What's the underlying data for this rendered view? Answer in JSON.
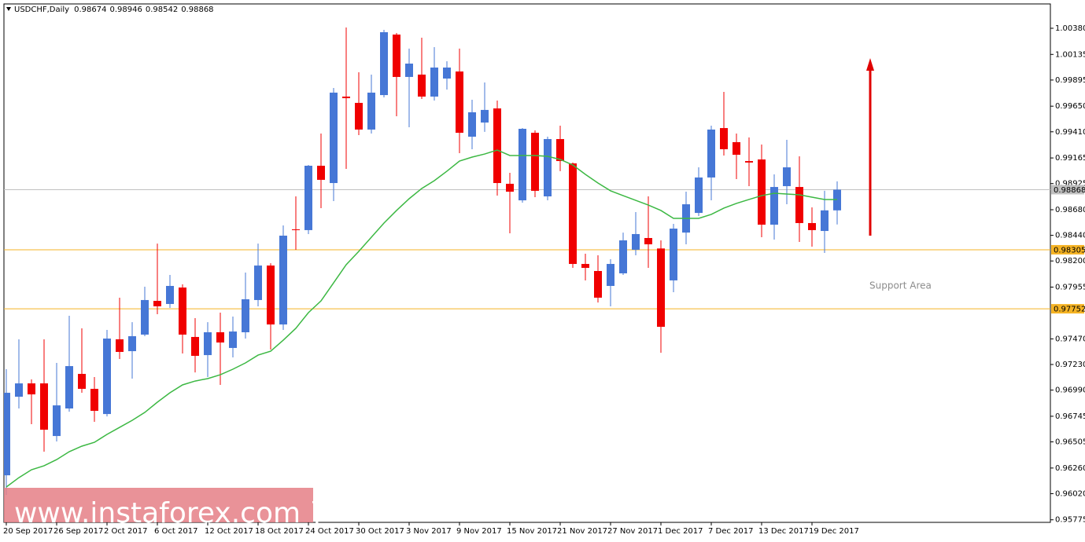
{
  "chart_data": {
    "type": "candlestick",
    "title": "USDCHF,Daily",
    "categories": [
      "20 Sep 2017",
      null,
      null,
      null,
      "26 Sep 2017",
      null,
      null,
      null,
      "2 Oct 2017",
      null,
      null,
      null,
      "6 Oct 2017",
      null,
      null,
      null,
      "12 Oct 2017",
      null,
      null,
      null,
      "18 Oct 2017",
      null,
      null,
      null,
      "24 Oct 2017",
      null,
      null,
      null,
      "30 Oct 2017",
      null,
      null,
      null,
      "3 Nov 2017",
      null,
      null,
      null,
      "9 Nov 2017",
      null,
      null,
      null,
      "15 Nov 2017",
      null,
      null,
      null,
      "21 Nov 2017",
      null,
      null,
      null,
      "27 Nov 2017",
      null,
      null,
      null,
      "1 Dec 2017",
      null,
      null,
      null,
      "7 Dec 2017",
      null,
      null,
      null,
      "13 Dec 2017",
      null,
      null,
      null,
      "19 Dec 2017",
      null,
      null
    ],
    "open": [
      0.96192,
      0.96928,
      0.97053,
      0.97053,
      0.9656,
      0.96818,
      0.97142,
      0.97002,
      0.96766,
      0.97466,
      0.97355,
      0.9751,
      0.97826,
      0.97797,
      0.97951,
      0.97488,
      0.97318,
      0.97532,
      0.97385,
      0.97532,
      0.97834,
      0.98157,
      0.97605,
      0.98496,
      0.98489,
      0.99092,
      0.9893,
      0.9974,
      0.99681,
      0.99431,
      0.99754,
      1.00321,
      0.99924,
      0.99946,
      0.9974,
      0.99909,
      0.99975,
      0.99364,
      0.99497,
      0.99629,
      0.98923,
      0.98768,
      0.99401,
      0.98805,
      0.99342,
      0.99114,
      0.98172,
      0.98106,
      0.97966,
      0.98084,
      0.98305,
      0.98415,
      0.98317,
      0.98018,
      0.98466,
      0.9865,
      0.98982,
      0.99445,
      0.99313,
      0.99136,
      0.99151,
      0.9854,
      0.98901,
      0.98893,
      0.98555,
      0.98481,
      0.98674
    ],
    "high": [
      0.97186,
      0.97466,
      0.9709,
      0.97466,
      0.97245,
      0.97686,
      0.97569,
      0.97112,
      0.97554,
      0.97856,
      0.97627,
      0.97959,
      0.98363,
      0.98069,
      0.97981,
      0.97664,
      0.97627,
      0.97716,
      0.97679,
      0.98091,
      0.98363,
      0.98179,
      0.98533,
      0.98805,
      0.99099,
      0.99394,
      0.99821,
      1.00387,
      0.99968,
      0.99946,
      1.00365,
      1.00336,
      1.00189,
      1.00292,
      1.00203,
      1.00071,
      1.00189,
      0.9971,
      0.99872,
      0.99703,
      0.99026,
      0.99445,
      0.99423,
      0.99364,
      0.99467,
      0.99122,
      0.98268,
      0.98253,
      0.98216,
      0.98466,
      0.98658,
      0.98805,
      0.98393,
      0.98547,
      0.98849,
      0.99077,
      0.99467,
      0.99784,
      0.99394,
      0.99357,
      0.99291,
      0.99011,
      0.99335,
      0.9918,
      0.98702,
      0.98857,
      0.98946
    ],
    "low": [
      0.96008,
      0.96818,
      0.96671,
      0.96413,
      0.96509,
      0.96788,
      0.96965,
      0.96693,
      0.96744,
      0.97282,
      0.97098,
      0.97495,
      0.97701,
      0.9776,
      0.97333,
      0.97156,
      0.97112,
      0.97039,
      0.97296,
      0.97473,
      0.97775,
      0.9737,
      0.97554,
      0.98305,
      0.98452,
      0.98695,
      0.98761,
      0.99063,
      0.99379,
      0.99394,
      0.99732,
      0.99556,
      0.99453,
      0.99718,
      0.99703,
      0.99806,
      0.9921,
      0.99247,
      0.99409,
      0.98812,
      0.98459,
      0.98746,
      0.98798,
      0.98768,
      0.99041,
      0.98135,
      0.98018,
      0.97811,
      0.97775,
      0.98069,
      0.98253,
      0.98135,
      0.9734,
      0.97907,
      0.98356,
      0.98621,
      0.98768,
      0.99188,
      0.98967,
      0.98901,
      0.98422,
      0.984,
      0.98731,
      0.98378,
      0.98334,
      0.98275,
      0.98542
    ],
    "close": [
      0.96965,
      0.97053,
      0.9695,
      0.96619,
      0.96847,
      0.97215,
      0.97002,
      0.96796,
      0.97473,
      0.97348,
      0.97495,
      0.97834,
      0.97775,
      0.97966,
      0.9751,
      0.97311,
      0.97532,
      0.97436,
      0.97539,
      0.97841,
      0.98157,
      0.97605,
      0.98437,
      0.98489,
      0.99092,
      0.9896,
      0.99777,
      0.99725,
      0.99431,
      0.99777,
      1.00343,
      0.99924,
      1.00049,
      0.9974,
      1.00012,
      1.00012,
      0.99401,
      0.99593,
      0.99615,
      0.9893,
      0.98849,
      0.99438,
      0.98857,
      0.99342,
      0.99136,
      0.98172,
      0.98135,
      0.97856,
      0.98172,
      0.98393,
      0.98452,
      0.98356,
      0.97583,
      0.98503,
      0.98731,
      0.98982,
      0.99431,
      0.99247,
      0.99195,
      0.99122,
      0.9854,
      0.98893,
      0.99077,
      0.98555,
      0.98489,
      0.98674,
      0.98868
    ],
    "up_color": "#4677d6",
    "down_color": "#f00000",
    "moving_average": {
      "color": "#3cb843",
      "values": [
        0.96082,
        0.9617,
        0.96244,
        0.96281,
        0.96339,
        0.96413,
        0.96465,
        0.96501,
        0.96575,
        0.96641,
        0.96707,
        0.96781,
        0.96877,
        0.96965,
        0.97039,
        0.97075,
        0.97098,
        0.97134,
        0.97186,
        0.97245,
        0.97318,
        0.97355,
        0.97458,
        0.97569,
        0.97716,
        0.97826,
        0.97995,
        0.98165,
        0.9829,
        0.98422,
        0.98555,
        0.98673,
        0.98783,
        0.98879,
        0.98952,
        0.99041,
        0.99136,
        0.99173,
        0.99202,
        0.99239,
        0.99188,
        0.99188,
        0.99188,
        0.9918,
        0.99151,
        0.99099,
        0.99011,
        0.9893,
        0.98857,
        0.98812,
        0.98768,
        0.98724,
        0.98673,
        0.98599,
        0.98599,
        0.98599,
        0.98636,
        0.98695,
        0.98739,
        0.98776,
        0.98812,
        0.98834,
        0.98827,
        0.9882,
        0.98798,
        0.98776,
        0.98776
      ]
    },
    "levels": [
      {
        "value": 0.98305,
        "color": "#f5b324"
      },
      {
        "value": 0.97752,
        "color": "#f5b324"
      },
      {
        "value": 0.98868,
        "color": "#c0c0c0"
      }
    ],
    "ylim": [
      0.95751,
      1.00608
    ],
    "yticks": [
      {
        "value": 1.0038,
        "label": "1.00380"
      },
      1.00135,
      0.99895,
      {
        "value": 0.9965,
        "label": "0.99650"
      },
      {
        "value": 0.9941,
        "label": "0.99410"
      },
      0.99165,
      0.98925,
      {
        "value": 0.9868,
        "label": "0.98680"
      },
      {
        "value": 0.9844,
        "label": "0.98440"
      },
      {
        "value": 0.982,
        "label": "0.98200"
      },
      0.97955,
      {
        "value": 0.9747,
        "label": "0.97470"
      },
      {
        "value": 0.9723,
        "label": "0.97230"
      },
      {
        "value": 0.9699,
        "label": "0.96990"
      },
      0.96745,
      0.96505,
      {
        "value": 0.9626,
        "label": "0.96260"
      },
      {
        "value": 0.9602,
        "label": "0.96020"
      },
      0.95775
    ],
    "annotation": "Support Area",
    "watermark": "[ www.instaforex.com ]"
  }
}
